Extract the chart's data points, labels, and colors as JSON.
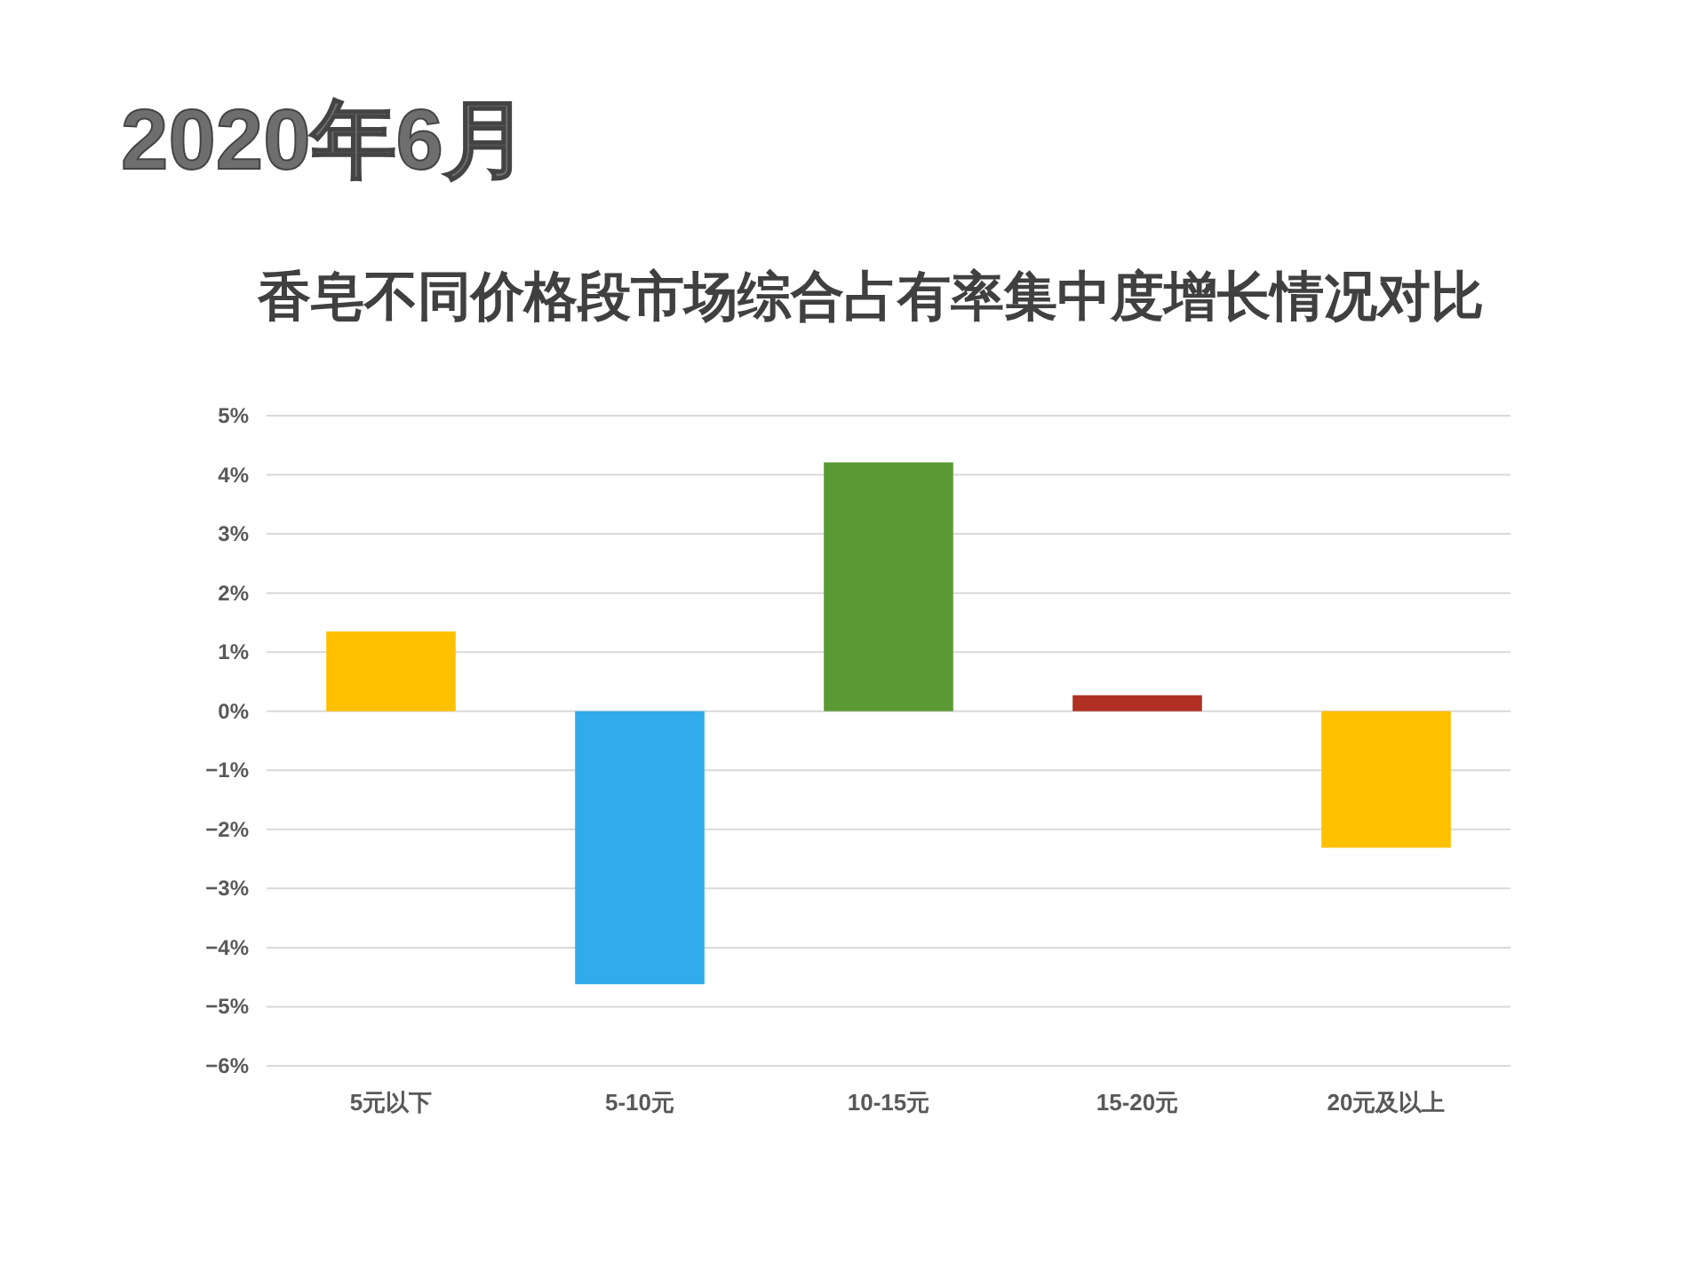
{
  "chart_data": {
    "type": "bar",
    "title": "香皂不同价格段市场综合占有率集中度增长情况对比",
    "annotations": [
      "2020年6月"
    ],
    "categories": [
      "5元以下",
      "5-10元",
      "10-15元",
      "15-20元",
      "20元及以上"
    ],
    "values": [
      1.35,
      -4.62,
      4.21,
      0.27,
      -2.31
    ],
    "colors": [
      "#ffc000",
      "#30abeb",
      "#5b9a33",
      "#b03024",
      "#ffc000"
    ],
    "ylim": [
      -6,
      5
    ],
    "yticks": [
      {
        "value": 5,
        "label": "5%"
      },
      {
        "value": 4,
        "label": "4%"
      },
      {
        "value": 3,
        "label": "3%"
      },
      {
        "value": 2,
        "label": "2%"
      },
      {
        "value": 1,
        "label": "1%"
      },
      {
        "value": 0,
        "label": "0%"
      },
      {
        "value": -1,
        "label": "−1%"
      },
      {
        "value": -2,
        "label": "−2%"
      },
      {
        "value": -3,
        "label": "−3%"
      },
      {
        "value": -4,
        "label": "−4%"
      },
      {
        "value": -5,
        "label": "−5%"
      },
      {
        "value": -6,
        "label": "−6%"
      }
    ],
    "grid": "y"
  }
}
